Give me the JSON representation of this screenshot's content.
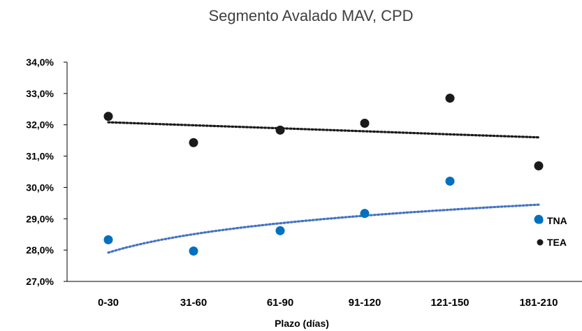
{
  "chart_data": {
    "type": "scatter",
    "title": "Segmento Avalado MAV, CPD",
    "xlabel": "Plazo (días)",
    "ylabel": "",
    "categories": [
      "0-30",
      "31-60",
      "61-90",
      "91-120",
      "121-150",
      "181-210"
    ],
    "y_ticks": [
      "27,0%",
      "28,0%",
      "29,0%",
      "30,0%",
      "31,0%",
      "32,0%",
      "33,0%",
      "34,0%"
    ],
    "ylim": [
      27.0,
      34.0
    ],
    "grid": false,
    "series": [
      {
        "name": "TNA",
        "color": "#0070C0",
        "values": [
          28.33,
          27.97,
          28.62,
          29.17,
          30.2,
          28.98
        ],
        "trendline": {
          "type": "logarithmic",
          "style": "dotted",
          "color": "#4472C4",
          "start": 27.92,
          "end": 29.45
        }
      },
      {
        "name": "TEA",
        "color": "#1a1a1a",
        "values": [
          32.27,
          31.43,
          31.83,
          32.05,
          32.85,
          30.69
        ],
        "trendline": {
          "type": "linear",
          "style": "dotted",
          "color": "#1a1a1a",
          "start": 32.08,
          "end": 31.6
        }
      }
    ],
    "legend": {
      "position": "right",
      "entries": [
        "TNA",
        "TEA"
      ]
    }
  }
}
